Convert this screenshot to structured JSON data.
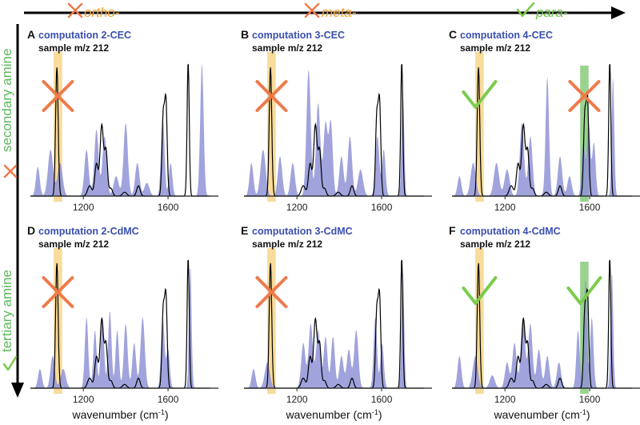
{
  "colors": {
    "computed_fill": "#8f93d6",
    "sample_line": "#000000",
    "ortho_meta_color": "#f0a030",
    "para_color": "#6ac04a",
    "cross_color": "#ee7a4a",
    "check_color": "#7ccb4e",
    "title_blue": "#3a4fb0",
    "highlight_orange": "#f7cf78",
    "highlight_green": "#77c46a"
  },
  "columns": [
    {
      "label": "ortho-",
      "mark": "cross",
      "color": "#f0a030"
    },
    {
      "label": "meta-",
      "mark": "cross",
      "color": "#f0a030"
    },
    {
      "label": "para-",
      "mark": "check",
      "color": "#6ac04a"
    }
  ],
  "rows": [
    {
      "label": "secondary amine",
      "mark": "cross",
      "color": "#5cb85c"
    },
    {
      "label": "tertiary amine",
      "mark": "check",
      "color": "#5cb85c"
    }
  ],
  "panels": [
    {
      "letter": "A",
      "title": "computation 2-CEC",
      "sample": "sample m/z 212",
      "verdict": "cross"
    },
    {
      "letter": "B",
      "title": "computation 3-CEC",
      "sample": "sample m/z 212",
      "verdict": "cross"
    },
    {
      "letter": "C",
      "title": "computation 4-CEC",
      "sample": "sample m/z 212",
      "verdict": "check-cross"
    },
    {
      "letter": "D",
      "title": "computation 2-CdMC",
      "sample": "sample m/z 212",
      "verdict": "cross"
    },
    {
      "letter": "E",
      "title": "computation 3-CdMC",
      "sample": "sample m/z 212",
      "verdict": "cross"
    },
    {
      "letter": "F",
      "title": "computation 4-CdMC",
      "sample": "sample m/z 212",
      "verdict": "check-check"
    }
  ],
  "axis": {
    "ticks": [
      "1200",
      "1600"
    ],
    "xlabel": "wavenumber (cm-1)",
    "xlabel_main": "wavenumber (cm",
    "xlabel_sup": "-1",
    "xlabel_close": ")",
    "range": [
      950,
      1800
    ]
  },
  "labels": {
    "sample_prefix": "sample ",
    "sample_mz": "m/z",
    "sample_value": " 212"
  }
}
